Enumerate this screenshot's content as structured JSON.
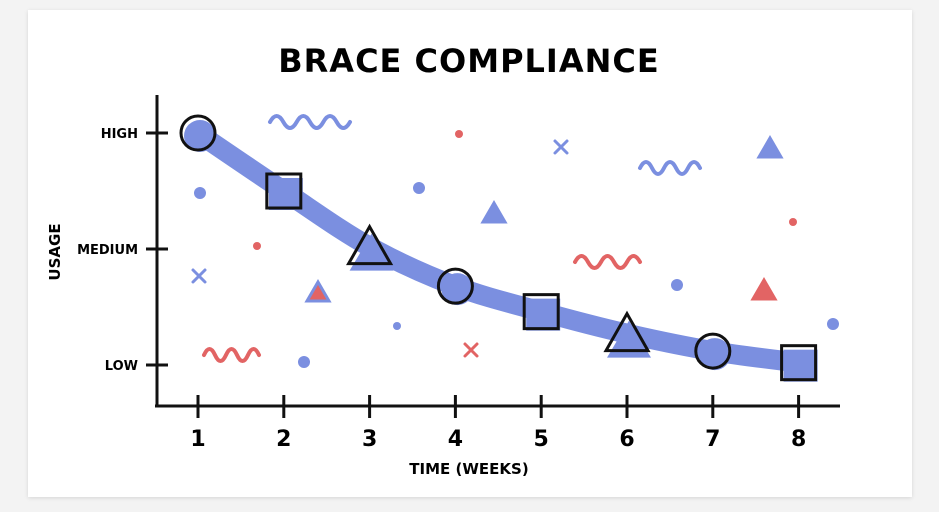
{
  "chart_data": {
    "type": "line",
    "title": "BRACE COMPLIANCE",
    "xlabel": "TIME (WEEKS)",
    "ylabel": "USAGE",
    "x": [
      1,
      2,
      3,
      4,
      5,
      6,
      7,
      8
    ],
    "x_tick_labels": [
      "1",
      "2",
      "3",
      "4",
      "5",
      "6",
      "7",
      "8"
    ],
    "y_tick_labels": [
      "LOW",
      "MEDIUM",
      "HIGH"
    ],
    "y_tick_values": [
      0,
      1,
      2
    ],
    "ylim": [
      -0.35,
      2.3
    ],
    "xlim": [
      0.5,
      8.5
    ],
    "series": [
      {
        "name": "Usage",
        "values": [
          2.0,
          1.5,
          1.02,
          0.68,
          0.46,
          0.27,
          0.12,
          0.02
        ],
        "markers": [
          "circle",
          "square",
          "triangle",
          "circle",
          "square",
          "triangle",
          "circle",
          "square"
        ]
      }
    ],
    "grid": false,
    "colors": {
      "line": "#7b8fe0",
      "accent_red": "#e26464",
      "ink": "#111111"
    }
  }
}
